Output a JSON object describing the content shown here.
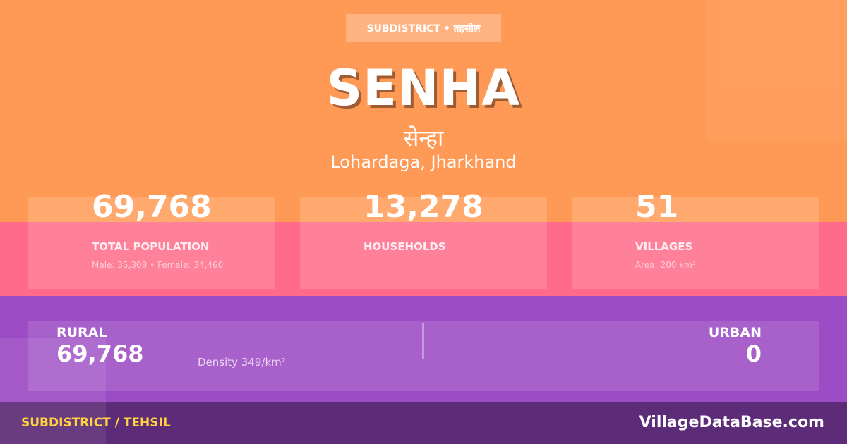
{
  "colors": {
    "orange": "#ff9a56",
    "pink": "#ff6b88",
    "purple": "#9c4cc4",
    "footer": "#5d2c78",
    "footer_label": "#ffd23f"
  },
  "badge": "SUBDISTRICT • तहसील",
  "title": "SENHA",
  "title_hindi": "सेन्हा",
  "location": "Lohardaga, Jharkhand",
  "stats": [
    {
      "value": "69,768",
      "label": "TOTAL POPULATION",
      "sub": "Male: 35,308 • Female: 34,460"
    },
    {
      "value": "13,278",
      "label": "HOUSEHOLDS",
      "sub": ""
    },
    {
      "value": "51",
      "label": "VILLAGES",
      "sub": "Area: 200 km²"
    }
  ],
  "rural": {
    "label": "RURAL",
    "value": "69,768"
  },
  "urban": {
    "label": "URBAN",
    "value": "0"
  },
  "density": "Density 349/km²",
  "footer": {
    "type": "SUBDISTRICT / TEHSIL",
    "site": "VillageDataBase.com"
  }
}
